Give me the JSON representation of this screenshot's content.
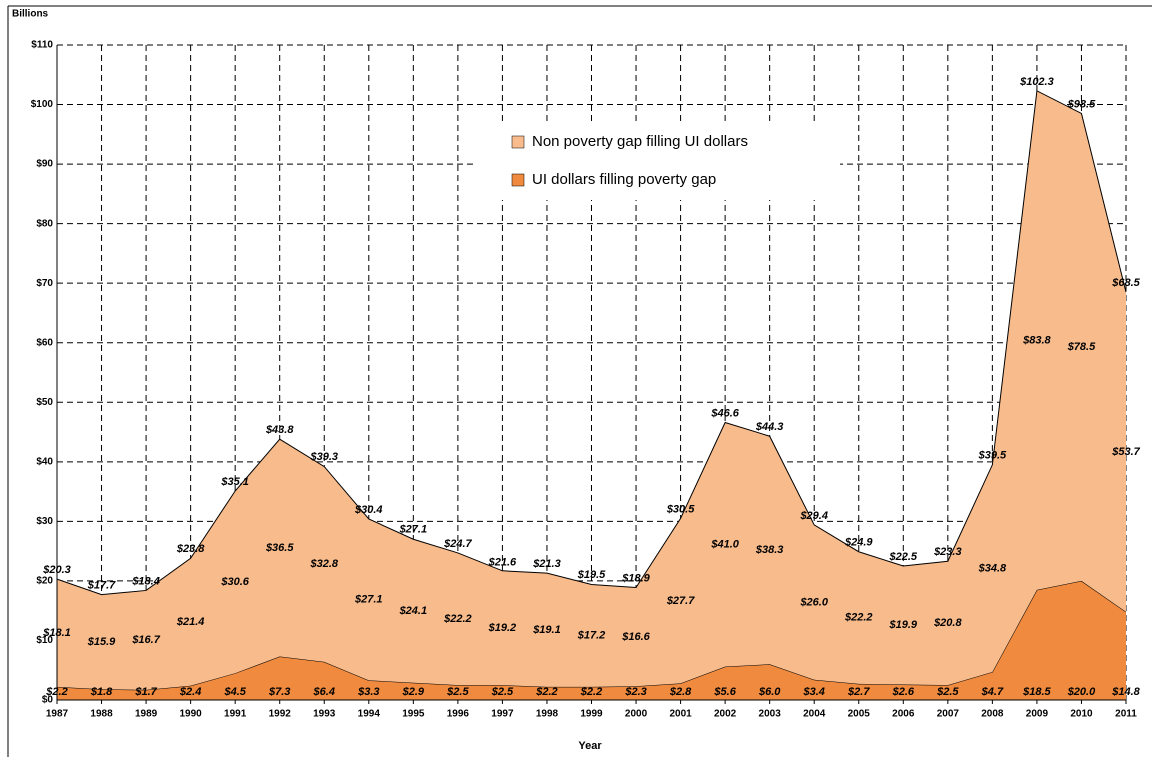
{
  "chart_data": {
    "type": "stacked_area",
    "y_axis_title": "Billions",
    "x_axis_title": "Year",
    "categories": [
      "1987",
      "1988",
      "1989",
      "1990",
      "1991",
      "1992",
      "1993",
      "1994",
      "1995",
      "1996",
      "1997",
      "1998",
      "1999",
      "2000",
      "2001",
      "2002",
      "2003",
      "2004",
      "2005",
      "2006",
      "2007",
      "2008",
      "2009",
      "2010",
      "2011"
    ],
    "series": [
      {
        "name": "UI dollars filling poverty gap",
        "color": "#ef8a3e",
        "values": [
          2.2,
          1.8,
          1.7,
          2.4,
          4.5,
          7.3,
          6.4,
          3.3,
          2.9,
          2.5,
          2.5,
          2.2,
          2.2,
          2.3,
          2.8,
          5.6,
          6.0,
          3.4,
          2.7,
          2.6,
          2.5,
          4.7,
          18.5,
          20.0,
          14.8
        ],
        "value_labels": [
          "$2.2",
          "$1.8",
          "$1.7",
          "$2.4",
          "$4.5",
          "$7.3",
          "$6.4",
          "$3.3",
          "$2.9",
          "$2.5",
          "$2.5",
          "$2.2",
          "$2.2",
          "$2.3",
          "$2.8",
          "$5.6",
          "$6.0",
          "$3.4",
          "$2.7",
          "$2.6",
          "$2.5",
          "$4.7",
          "$18.5",
          "$20.0",
          "$14.8"
        ]
      },
      {
        "name": "Non poverty gap filling UI dollars",
        "color": "#f8bb8c",
        "values": [
          18.1,
          15.9,
          16.7,
          21.4,
          30.6,
          36.5,
          32.8,
          27.1,
          24.1,
          22.2,
          19.2,
          19.1,
          17.2,
          16.6,
          27.7,
          41.0,
          38.3,
          26.0,
          22.2,
          19.9,
          20.8,
          34.8,
          83.8,
          78.5,
          53.7
        ],
        "value_labels": [
          "$18.1",
          "$15.9",
          "$16.7",
          "$21.4",
          "$30.6",
          "$36.5",
          "$32.8",
          "$27.1",
          "$24.1",
          "$22.2",
          "$19.2",
          "$19.1",
          "$17.2",
          "$16.6",
          "$27.7",
          "$41.0",
          "$38.3",
          "$26.0",
          "$22.2",
          "$19.9",
          "$20.8",
          "$34.8",
          "$83.8",
          "$78.5",
          "$53.7"
        ]
      }
    ],
    "totals": [
      20.3,
      17.7,
      18.4,
      23.8,
      35.1,
      43.8,
      39.3,
      30.4,
      27.1,
      24.7,
      21.6,
      21.3,
      19.5,
      18.9,
      30.5,
      46.6,
      44.3,
      29.4,
      24.9,
      22.5,
      23.3,
      39.5,
      102.3,
      98.5,
      68.5
    ],
    "total_labels": [
      "$20.3",
      "$17.7",
      "$18.4",
      "$23.8",
      "$35.1",
      "$43.8",
      "$39.3",
      "$30.4",
      "$27.1",
      "$24.7",
      "$21.6",
      "$21.3",
      "$19.5",
      "$18.9",
      "$30.5",
      "$46.6",
      "$44.3",
      "$29.4",
      "$24.9",
      "$22.5",
      "$23.3",
      "$39.5",
      "$102.3",
      "$98.5",
      "$68.5"
    ],
    "ylim": [
      0,
      110
    ],
    "yticks": [
      {
        "value": 0,
        "label": "$0"
      },
      {
        "value": 10,
        "label": "$10"
      },
      {
        "value": 20,
        "label": "$20"
      },
      {
        "value": 30,
        "label": "$30"
      },
      {
        "value": 40,
        "label": "$40"
      },
      {
        "value": 50,
        "label": "$50"
      },
      {
        "value": 60,
        "label": "$60"
      },
      {
        "value": 70,
        "label": "$70"
      },
      {
        "value": 80,
        "label": "$80"
      },
      {
        "value": 90,
        "label": "$90"
      },
      {
        "value": 100,
        "label": "$100"
      },
      {
        "value": 110,
        "label": "$110"
      }
    ],
    "grid": true
  }
}
